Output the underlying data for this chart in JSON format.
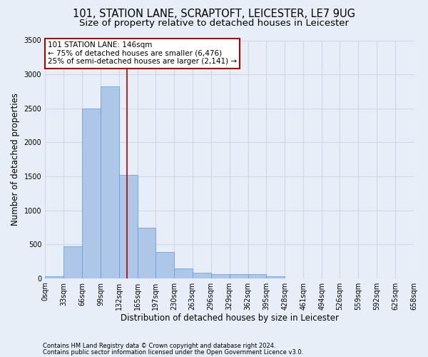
{
  "title1": "101, STATION LANE, SCRAPTOFT, LEICESTER, LE7 9UG",
  "title2": "Size of property relative to detached houses in Leicester",
  "xlabel": "Distribution of detached houses by size in Leicester",
  "ylabel": "Number of detached properties",
  "bar_edges": [
    0,
    33,
    66,
    99,
    132,
    165,
    197,
    230,
    263,
    296,
    329,
    362,
    395,
    428,
    461,
    494,
    526,
    559,
    592,
    625,
    658
  ],
  "bar_heights": [
    30,
    470,
    2500,
    2820,
    1520,
    740,
    390,
    140,
    80,
    60,
    60,
    60,
    30,
    0,
    0,
    0,
    0,
    0,
    0,
    0
  ],
  "bar_color": "#aec6e8",
  "bar_edge_color": "#5b9bd5",
  "property_size": 146,
  "annotation_line1": "101 STATION LANE: 146sqm",
  "annotation_line2": "← 75% of detached houses are smaller (6,476)",
  "annotation_line3": "25% of semi-detached houses are larger (2,141) →",
  "vline_x": 146,
  "vline_color": "#aa0000",
  "annotation_box_color": "#aa0000",
  "ylim": [
    0,
    3500
  ],
  "yticks": [
    0,
    500,
    1000,
    1500,
    2000,
    2500,
    3000,
    3500
  ],
  "footer1": "Contains HM Land Registry data © Crown copyright and database right 2024.",
  "footer2": "Contains public sector information licensed under the Open Government Licence v3.0.",
  "bg_color": "#e8eef7",
  "plot_bg_color": "#e8eef7",
  "grid_color": "#d0d8e8",
  "title1_fontsize": 10.5,
  "title2_fontsize": 9.5,
  "tick_label_fontsize": 7,
  "ylabel_fontsize": 8.5,
  "xlabel_fontsize": 8.5,
  "annotation_fontsize": 7.5
}
